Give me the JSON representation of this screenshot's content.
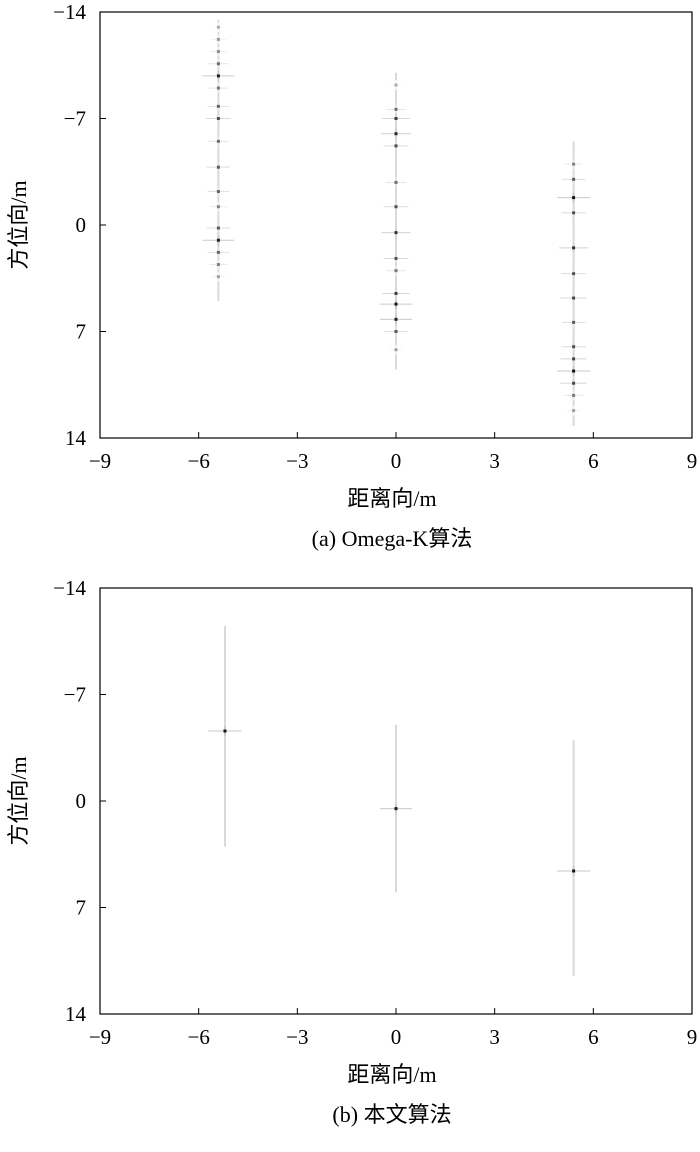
{
  "chart_data": [
    {
      "type": "scatter",
      "caption": "(a) Omega-K算法",
      "xlabel": "距离向/m",
      "ylabel": "方位向/m",
      "xlim": [
        -9,
        9
      ],
      "ylim": [
        -14,
        14
      ],
      "y_inverted": true,
      "xticks": [
        -9,
        -6,
        -3,
        0,
        3,
        6,
        9
      ],
      "yticks": [
        -14,
        -7,
        0,
        7,
        14
      ],
      "xtick_labels": [
        "−9",
        "−6",
        "−3",
        "0",
        "3",
        "6",
        "9"
      ],
      "ytick_labels": [
        "−14",
        "−7",
        "0",
        "7",
        "14"
      ],
      "grid": false,
      "streaks": [
        {
          "x": -5.4,
          "y_range": [
            -13.5,
            5.0
          ]
        },
        {
          "x": 0.0,
          "y_range": [
            -10.0,
            9.5
          ]
        },
        {
          "x": 5.4,
          "y_range": [
            -5.5,
            13.2
          ]
        }
      ],
      "points": [
        {
          "x": -5.4,
          "y": -13.0,
          "intensity": 0.15
        },
        {
          "x": -5.4,
          "y": -12.2,
          "intensity": 0.25
        },
        {
          "x": -5.4,
          "y": -11.4,
          "intensity": 0.3
        },
        {
          "x": -5.4,
          "y": -10.6,
          "intensity": 0.45
        },
        {
          "x": -5.4,
          "y": -9.8,
          "intensity": 0.85
        },
        {
          "x": -5.4,
          "y": -9.0,
          "intensity": 0.4
        },
        {
          "x": -5.4,
          "y": -7.8,
          "intensity": 0.5
        },
        {
          "x": -5.4,
          "y": -7.0,
          "intensity": 0.6
        },
        {
          "x": -5.4,
          "y": -5.5,
          "intensity": 0.45
        },
        {
          "x": -5.4,
          "y": -3.8,
          "intensity": 0.55
        },
        {
          "x": -5.4,
          "y": -2.2,
          "intensity": 0.5
        },
        {
          "x": -5.4,
          "y": -1.2,
          "intensity": 0.35
        },
        {
          "x": -5.4,
          "y": 0.2,
          "intensity": 0.55
        },
        {
          "x": -5.4,
          "y": 1.0,
          "intensity": 0.85
        },
        {
          "x": -5.4,
          "y": 1.8,
          "intensity": 0.5
        },
        {
          "x": -5.4,
          "y": 2.6,
          "intensity": 0.35
        },
        {
          "x": -5.4,
          "y": 3.4,
          "intensity": 0.2
        },
        {
          "x": 0.0,
          "y": -9.2,
          "intensity": 0.15
        },
        {
          "x": 0.0,
          "y": -7.6,
          "intensity": 0.45
        },
        {
          "x": 0.0,
          "y": -7.0,
          "intensity": 0.7
        },
        {
          "x": 0.0,
          "y": -6.0,
          "intensity": 0.8
        },
        {
          "x": 0.0,
          "y": -5.2,
          "intensity": 0.6
        },
        {
          "x": 0.0,
          "y": -2.8,
          "intensity": 0.45
        },
        {
          "x": 0.0,
          "y": -1.2,
          "intensity": 0.6
        },
        {
          "x": 0.0,
          "y": 0.5,
          "intensity": 0.75
        },
        {
          "x": 0.0,
          "y": 2.2,
          "intensity": 0.6
        },
        {
          "x": 0.0,
          "y": 3.0,
          "intensity": 0.4
        },
        {
          "x": 0.0,
          "y": 4.5,
          "intensity": 0.7
        },
        {
          "x": 0.0,
          "y": 5.2,
          "intensity": 0.9
        },
        {
          "x": 0.0,
          "y": 6.2,
          "intensity": 0.85
        },
        {
          "x": 0.0,
          "y": 7.0,
          "intensity": 0.55
        },
        {
          "x": 0.0,
          "y": 8.2,
          "intensity": 0.2
        },
        {
          "x": 5.4,
          "y": -4.0,
          "intensity": 0.35
        },
        {
          "x": 5.4,
          "y": -3.0,
          "intensity": 0.55
        },
        {
          "x": 5.4,
          "y": -1.8,
          "intensity": 0.9
        },
        {
          "x": 5.4,
          "y": -0.8,
          "intensity": 0.6
        },
        {
          "x": 5.4,
          "y": 1.5,
          "intensity": 0.75
        },
        {
          "x": 5.4,
          "y": 3.2,
          "intensity": 0.6
        },
        {
          "x": 5.4,
          "y": 4.8,
          "intensity": 0.65
        },
        {
          "x": 5.4,
          "y": 6.4,
          "intensity": 0.55
        },
        {
          "x": 5.4,
          "y": 8.0,
          "intensity": 0.6
        },
        {
          "x": 5.4,
          "y": 8.8,
          "intensity": 0.65
        },
        {
          "x": 5.4,
          "y": 9.6,
          "intensity": 0.9
        },
        {
          "x": 5.4,
          "y": 10.4,
          "intensity": 0.65
        },
        {
          "x": 5.4,
          "y": 11.2,
          "intensity": 0.4
        },
        {
          "x": 5.4,
          "y": 12.2,
          "intensity": 0.2
        }
      ]
    },
    {
      "type": "scatter",
      "caption": "(b) 本文算法",
      "xlabel": "距离向/m",
      "ylabel": "方位向/m",
      "xlim": [
        -9,
        9
      ],
      "ylim": [
        -14,
        14
      ],
      "y_inverted": true,
      "xticks": [
        -9,
        -6,
        -3,
        0,
        3,
        6,
        9
      ],
      "yticks": [
        -14,
        -7,
        0,
        7,
        14
      ],
      "xtick_labels": [
        "−9",
        "−6",
        "−3",
        "0",
        "3",
        "6",
        "9"
      ],
      "ytick_labels": [
        "−14",
        "−7",
        "0",
        "7",
        "14"
      ],
      "grid": false,
      "streaks": [
        {
          "x": -5.2,
          "y_range": [
            -11.5,
            3.0
          ]
        },
        {
          "x": 0.0,
          "y_range": [
            -5.0,
            6.0
          ]
        },
        {
          "x": 5.4,
          "y_range": [
            -4.0,
            11.5
          ]
        }
      ],
      "points": [
        {
          "x": -5.2,
          "y": -4.6,
          "intensity": 0.9
        },
        {
          "x": 0.0,
          "y": 0.5,
          "intensity": 0.85
        },
        {
          "x": 5.4,
          "y": 4.6,
          "intensity": 0.9
        }
      ]
    }
  ]
}
